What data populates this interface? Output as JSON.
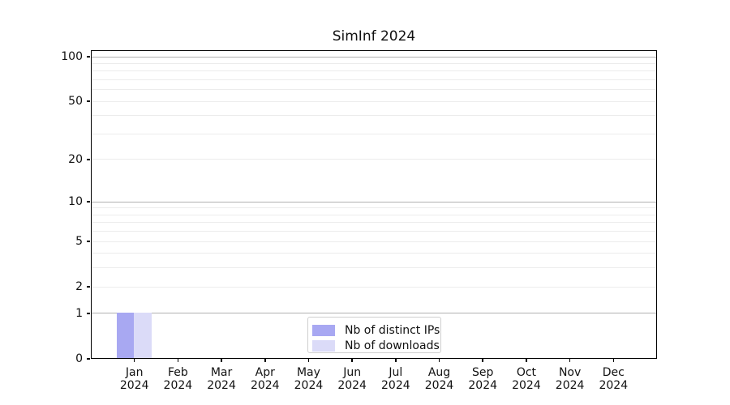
{
  "chart_data": {
    "type": "bar",
    "title": "SimInf 2024",
    "categories": [
      "Jan",
      "Feb",
      "Mar",
      "Apr",
      "May",
      "Jun",
      "Jul",
      "Aug",
      "Sep",
      "Oct",
      "Nov",
      "Dec"
    ],
    "category_year": "2024",
    "series": [
      {
        "name": "Nb of distinct IPs",
        "color": "#a8a8f2",
        "values": [
          1,
          0,
          0,
          0,
          0,
          0,
          0,
          0,
          0,
          0,
          0,
          0
        ]
      },
      {
        "name": "Nb of downloads",
        "color": "#dbdbf8",
        "values": [
          1,
          0,
          0,
          0,
          0,
          0,
          0,
          0,
          0,
          0,
          0,
          0
        ]
      }
    ],
    "xlabel": "",
    "ylabel": "",
    "yscale": "log1p",
    "ylim": [
      0,
      112
    ],
    "yticks": [
      0,
      1,
      2,
      5,
      10,
      20,
      50,
      100
    ],
    "grid": {
      "major_values": [
        1,
        10,
        100
      ],
      "minor_values": [
        2,
        3,
        4,
        5,
        6,
        7,
        8,
        9,
        20,
        30,
        40,
        50,
        60,
        70,
        80,
        90
      ],
      "major_color": "#b0b0b0",
      "minor_color": "#ececec"
    },
    "legend_position": "lower center",
    "axis_color": "#000000",
    "background_color": "#ffffff"
  }
}
